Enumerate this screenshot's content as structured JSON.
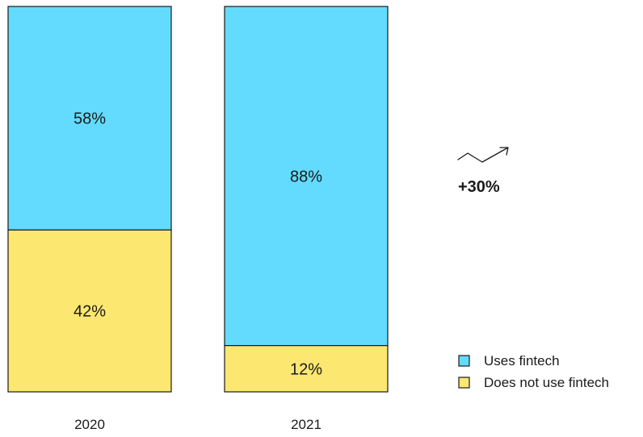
{
  "chart_data": {
    "type": "bar",
    "stacked": true,
    "percent": true,
    "categories": [
      "2020",
      "2021"
    ],
    "series": [
      {
        "name": "Uses fintech",
        "values": [
          58,
          88
        ],
        "color": "#62dbfe"
      },
      {
        "name": "Does not use fintech",
        "values": [
          42,
          12
        ],
        "color": "#fce771"
      }
    ],
    "segment_labels": {
      "Uses fintech": [
        "58%",
        "88%"
      ],
      "Does not use fintech": [
        "42%",
        "12%"
      ]
    },
    "ylim": [
      0,
      100
    ],
    "grid": false,
    "legend_position": "bottom-right",
    "annotation": {
      "text": "+30%",
      "icon": "trend-up-arrow-icon"
    }
  }
}
